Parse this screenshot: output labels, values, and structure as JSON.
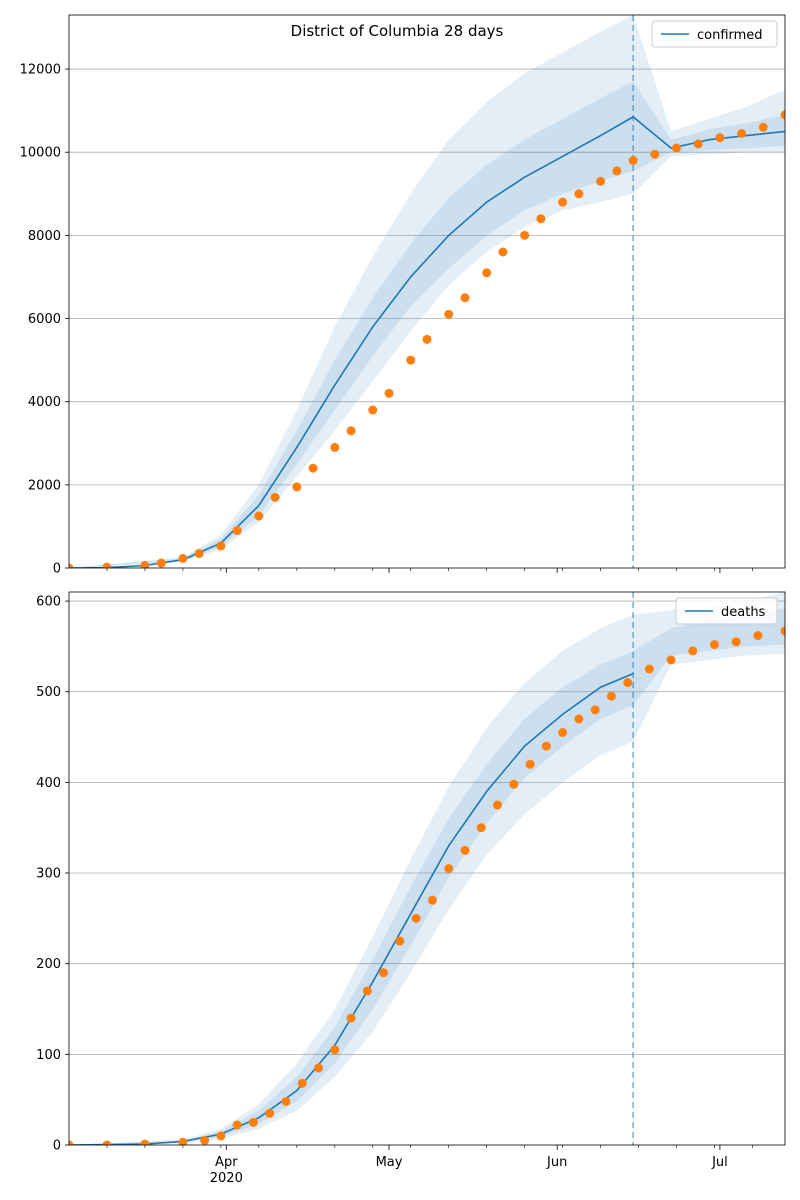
{
  "chart_data": [
    {
      "type": "line",
      "title": "District of Columbia 28 days",
      "xlabel": "",
      "ylabel": "",
      "x_range": [
        "2020-03-03",
        "2020-07-13"
      ],
      "ylim": [
        0,
        13300
      ],
      "yticks": [
        0,
        2000,
        4000,
        6000,
        8000,
        10000,
        12000
      ],
      "xticks_major": [
        {
          "date": "2020-04-01",
          "label": "Apr",
          "sublabel": "2020"
        },
        {
          "date": "2020-05-01",
          "label": "May",
          "sublabel": ""
        },
        {
          "date": "2020-06-01",
          "label": "Jun",
          "sublabel": ""
        },
        {
          "date": "2020-07-01",
          "label": "Jul",
          "sublabel": ""
        }
      ],
      "forecast_start": "2020-06-15",
      "grid": "y",
      "legend": {
        "placement": "top-right",
        "entries": [
          "confirmed"
        ]
      },
      "colors": {
        "model": "#1f77b4",
        "observed": "#ff7f0e",
        "band": "#1f77b4"
      },
      "series": [
        {
          "name": "confirmed",
          "kind": "model-line",
          "x": [
            "2020-03-03",
            "2020-03-10",
            "2020-03-17",
            "2020-03-24",
            "2020-03-31",
            "2020-04-07",
            "2020-04-14",
            "2020-04-21",
            "2020-04-28",
            "2020-05-05",
            "2020-05-12",
            "2020-05-19",
            "2020-05-26",
            "2020-06-02",
            "2020-06-09",
            "2020-06-15",
            "2020-06-22",
            "2020-06-29",
            "2020-07-06",
            "2020-07-13"
          ],
          "y": [
            0,
            10,
            60,
            200,
            600,
            1500,
            2900,
            4400,
            5800,
            7000,
            8000,
            8800,
            9400,
            9900,
            10400,
            10850,
            10100,
            10300,
            10400,
            10500
          ]
        },
        {
          "name": "band-outer-upper",
          "kind": "band",
          "x": [
            "2020-03-03",
            "2020-03-24",
            "2020-03-31",
            "2020-04-07",
            "2020-04-14",
            "2020-04-21",
            "2020-04-28",
            "2020-05-05",
            "2020-05-12",
            "2020-05-19",
            "2020-05-26",
            "2020-06-02",
            "2020-06-09",
            "2020-06-15",
            "2020-06-22",
            "2020-06-29",
            "2020-07-06",
            "2020-07-13"
          ],
          "upper": [
            0,
            260,
            800,
            2000,
            3800,
            5800,
            7500,
            9000,
            10300,
            11200,
            11900,
            12400,
            12900,
            13300,
            10500,
            10800,
            11100,
            11500
          ],
          "lower": [
            0,
            150,
            450,
            1100,
            2200,
            3300,
            4500,
            5700,
            6800,
            7600,
            8200,
            8600,
            8800,
            9000,
            9900,
            9950,
            10000,
            10000
          ]
        },
        {
          "name": "band-inner",
          "kind": "band",
          "x": [
            "2020-03-03",
            "2020-03-24",
            "2020-03-31",
            "2020-04-07",
            "2020-04-14",
            "2020-04-21",
            "2020-04-28",
            "2020-05-05",
            "2020-05-12",
            "2020-05-19",
            "2020-05-26",
            "2020-06-02",
            "2020-06-09",
            "2020-06-15",
            "2020-06-22",
            "2020-06-29",
            "2020-07-06",
            "2020-07-13"
          ],
          "upper": [
            0,
            230,
            700,
            1750,
            3300,
            5000,
            6500,
            7800,
            8900,
            9700,
            10300,
            10800,
            11300,
            11700,
            10300,
            10550,
            10700,
            10900
          ],
          "lower": [
            0,
            170,
            510,
            1260,
            2500,
            3800,
            5100,
            6300,
            7200,
            8000,
            8600,
            9000,
            9300,
            9550,
            10000,
            10050,
            10100,
            10150
          ]
        },
        {
          "name": "observed confirmed",
          "kind": "points",
          "x": [
            "2020-03-03",
            "2020-03-10",
            "2020-03-17",
            "2020-03-20",
            "2020-03-24",
            "2020-03-27",
            "2020-03-31",
            "2020-04-03",
            "2020-04-07",
            "2020-04-10",
            "2020-04-14",
            "2020-04-17",
            "2020-04-21",
            "2020-04-24",
            "2020-04-28",
            "2020-05-01",
            "2020-05-05",
            "2020-05-08",
            "2020-05-12",
            "2020-05-15",
            "2020-05-19",
            "2020-05-22",
            "2020-05-26",
            "2020-05-29",
            "2020-06-02",
            "2020-06-05",
            "2020-06-09",
            "2020-06-12",
            "2020-06-15",
            "2020-06-19",
            "2020-06-23",
            "2020-06-27",
            "2020-07-01",
            "2020-07-05",
            "2020-07-09",
            "2020-07-13"
          ],
          "y": [
            0,
            20,
            60,
            120,
            230,
            350,
            530,
            900,
            1250,
            1700,
            1950,
            2400,
            2900,
            3300,
            3800,
            4200,
            5000,
            5500,
            6100,
            6500,
            7100,
            7600,
            8000,
            8400,
            8800,
            9000,
            9300,
            9550,
            9800,
            9950,
            10100,
            10200,
            10350,
            10450,
            10600,
            10900
          ]
        }
      ]
    },
    {
      "type": "line",
      "title": "",
      "xlabel": "",
      "ylabel": "",
      "x_range": [
        "2020-03-03",
        "2020-07-13"
      ],
      "ylim": [
        0,
        610
      ],
      "yticks": [
        0,
        100,
        200,
        300,
        400,
        500,
        600
      ],
      "xticks_major": [
        {
          "date": "2020-04-01",
          "label": "Apr",
          "sublabel": "2020"
        },
        {
          "date": "2020-05-01",
          "label": "May",
          "sublabel": ""
        },
        {
          "date": "2020-06-01",
          "label": "Jun",
          "sublabel": ""
        },
        {
          "date": "2020-07-01",
          "label": "Jul",
          "sublabel": ""
        }
      ],
      "forecast_start": "2020-06-15",
      "grid": "y",
      "legend": {
        "placement": "top-right",
        "entries": [
          "deaths"
        ]
      },
      "colors": {
        "model": "#1f77b4",
        "observed": "#ff7f0e",
        "band": "#1f77b4"
      },
      "series": [
        {
          "name": "deaths",
          "kind": "model-line",
          "x": [
            "2020-03-03",
            "2020-03-17",
            "2020-03-24",
            "2020-03-31",
            "2020-04-07",
            "2020-04-14",
            "2020-04-21",
            "2020-04-28",
            "2020-05-05",
            "2020-05-12",
            "2020-05-19",
            "2020-05-26",
            "2020-06-02",
            "2020-06-09",
            "2020-06-15"
          ],
          "y": [
            0,
            1,
            4,
            12,
            30,
            60,
            110,
            180,
            255,
            330,
            390,
            440,
            475,
            505,
            520
          ]
        },
        {
          "name": "band-outer",
          "kind": "band",
          "x": [
            "2020-03-03",
            "2020-03-24",
            "2020-03-31",
            "2020-04-07",
            "2020-04-14",
            "2020-04-21",
            "2020-04-28",
            "2020-05-05",
            "2020-05-12",
            "2020-05-19",
            "2020-05-26",
            "2020-06-02",
            "2020-06-09",
            "2020-06-15",
            "2020-06-22",
            "2020-06-29",
            "2020-07-06",
            "2020-07-13"
          ],
          "upper": [
            0,
            6,
            18,
            45,
            90,
            150,
            230,
            315,
            395,
            460,
            510,
            545,
            570,
            585,
            590,
            595,
            600,
            610
          ],
          "lower": [
            0,
            2,
            7,
            18,
            38,
            75,
            125,
            190,
            260,
            320,
            365,
            400,
            430,
            445,
            530,
            535,
            540,
            542
          ]
        },
        {
          "name": "band-inner",
          "kind": "band",
          "x": [
            "2020-03-03",
            "2020-03-24",
            "2020-03-31",
            "2020-04-07",
            "2020-04-14",
            "2020-04-21",
            "2020-04-28",
            "2020-05-05",
            "2020-05-12",
            "2020-05-19",
            "2020-05-26",
            "2020-06-02",
            "2020-06-09",
            "2020-06-15",
            "2020-06-22",
            "2020-06-29",
            "2020-07-06",
            "2020-07-13"
          ],
          "upper": [
            0,
            5,
            15,
            38,
            75,
            130,
            205,
            285,
            360,
            420,
            470,
            505,
            530,
            545,
            570,
            578,
            585,
            592
          ],
          "lower": [
            0,
            3,
            9,
            23,
            48,
            90,
            150,
            220,
            295,
            355,
            405,
            440,
            470,
            485,
            540,
            545,
            550,
            552
          ]
        },
        {
          "name": "observed deaths",
          "kind": "points",
          "x": [
            "2020-03-03",
            "2020-03-10",
            "2020-03-17",
            "2020-03-24",
            "2020-03-28",
            "2020-03-31",
            "2020-04-03",
            "2020-04-06",
            "2020-04-09",
            "2020-04-12",
            "2020-04-15",
            "2020-04-18",
            "2020-04-21",
            "2020-04-24",
            "2020-04-27",
            "2020-04-30",
            "2020-05-03",
            "2020-05-06",
            "2020-05-09",
            "2020-05-12",
            "2020-05-15",
            "2020-05-18",
            "2020-05-21",
            "2020-05-24",
            "2020-05-27",
            "2020-05-30",
            "2020-06-02",
            "2020-06-05",
            "2020-06-08",
            "2020-06-11",
            "2020-06-14",
            "2020-06-18",
            "2020-06-22",
            "2020-06-26",
            "2020-06-30",
            "2020-07-04",
            "2020-07-08",
            "2020-07-13"
          ],
          "y": [
            0,
            0,
            1,
            3,
            5,
            10,
            22,
            25,
            35,
            48,
            68,
            85,
            105,
            140,
            170,
            190,
            225,
            250,
            270,
            305,
            325,
            350,
            375,
            398,
            420,
            440,
            455,
            470,
            480,
            495,
            510,
            525,
            535,
            545,
            552,
            555,
            562,
            567
          ]
        }
      ]
    }
  ]
}
